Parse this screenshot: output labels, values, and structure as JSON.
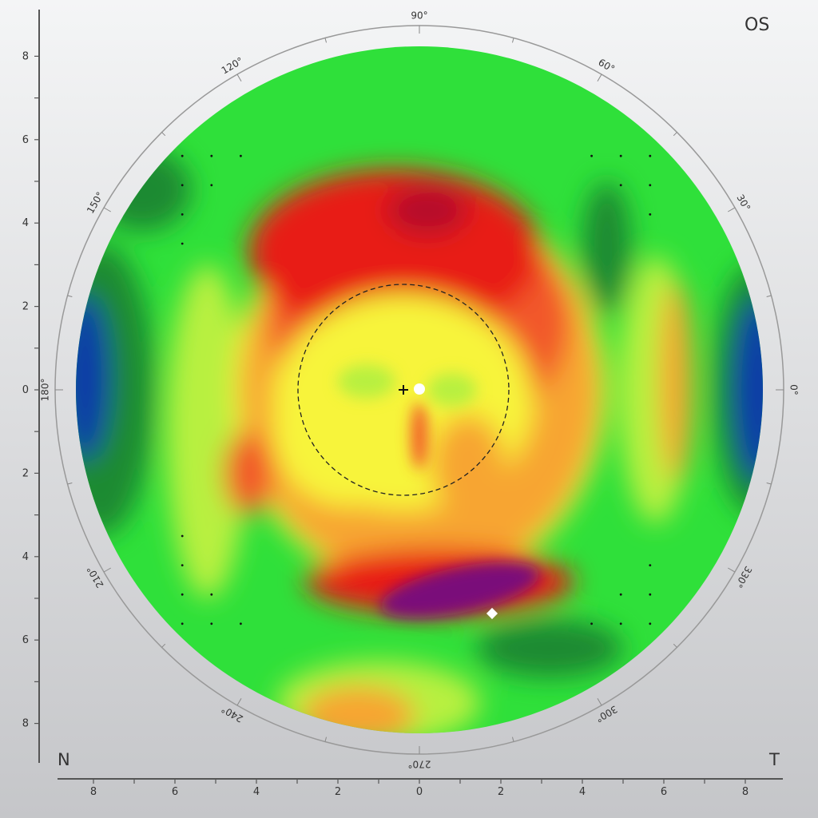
{
  "eye_label": "OS",
  "nasal_label": "N",
  "temporal_label": "T",
  "chart_data": {
    "type": "heatmap",
    "subtype": "polar corneal topography map",
    "x_axis": {
      "ticks": [
        "8",
        "6",
        "4",
        "2",
        "0",
        "2",
        "4",
        "6",
        "8"
      ],
      "range": [
        -8.8,
        8.8
      ]
    },
    "y_axis": {
      "ticks": [
        "8",
        "6",
        "4",
        "2",
        "0",
        "2",
        "4",
        "6",
        "8"
      ],
      "range": [
        -8.8,
        8.8
      ]
    },
    "angle_labels": [
      "0°",
      "30°",
      "60°",
      "90°",
      "120°",
      "150°",
      "180°",
      "210°",
      "240°",
      "270°",
      "300°",
      "330°"
    ],
    "grid": false,
    "colors": {
      "blue": "#0b3aa8",
      "dark_green": "#1f8a30",
      "green": "#2fe03a",
      "yellow_green": "#b8f040",
      "yellow": "#f7f43a",
      "orange": "#f7a533",
      "red_orange": "#f2582a",
      "red": "#e81d12",
      "dark_red": "#b50f2a",
      "purple": "#7a087a"
    },
    "markers": {
      "pupil_circle_radius": 2.3,
      "pupil_center": [
        -0.4,
        0
      ],
      "apex": [
        0,
        0
      ],
      "thinnest_point": [
        1.8,
        -5.4
      ]
    }
  }
}
